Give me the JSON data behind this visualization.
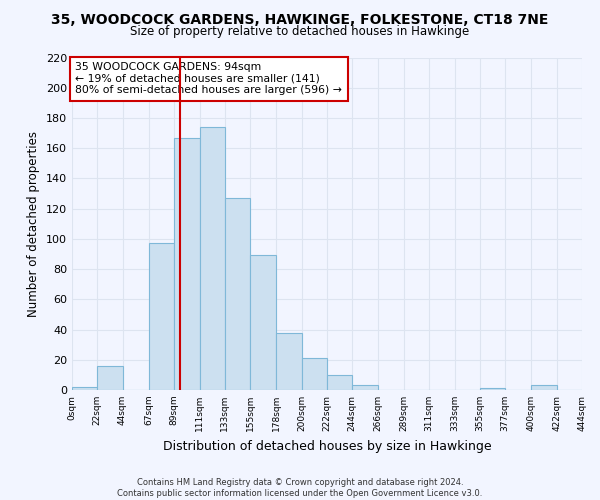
{
  "title": "35, WOODCOCK GARDENS, HAWKINGE, FOLKESTONE, CT18 7NE",
  "subtitle": "Size of property relative to detached houses in Hawkinge",
  "xlabel": "Distribution of detached houses by size in Hawkinge",
  "ylabel": "Number of detached properties",
  "bin_edges": [
    0,
    22,
    44,
    67,
    89,
    111,
    133,
    155,
    178,
    200,
    222,
    244,
    266,
    289,
    311,
    333,
    355,
    377,
    400,
    422,
    444
  ],
  "bar_heights": [
    2,
    16,
    0,
    97,
    167,
    174,
    127,
    89,
    38,
    21,
    10,
    3,
    0,
    0,
    0,
    0,
    1,
    0,
    3,
    0
  ],
  "bar_color": "#cce0f0",
  "bar_edge_color": "#7fb8d8",
  "property_line_x": 94,
  "property_line_color": "#cc0000",
  "ylim": [
    0,
    220
  ],
  "yticks": [
    0,
    20,
    40,
    60,
    80,
    100,
    120,
    140,
    160,
    180,
    200,
    220
  ],
  "tick_labels": [
    "0sqm",
    "22sqm",
    "44sqm",
    "67sqm",
    "89sqm",
    "111sqm",
    "133sqm",
    "155sqm",
    "178sqm",
    "200sqm",
    "222sqm",
    "244sqm",
    "266sqm",
    "289sqm",
    "311sqm",
    "333sqm",
    "355sqm",
    "377sqm",
    "400sqm",
    "422sqm",
    "444sqm"
  ],
  "annotation_text": "35 WOODCOCK GARDENS: 94sqm\n← 19% of detached houses are smaller (141)\n80% of semi-detached houses are larger (596) →",
  "annotation_box_facecolor": "white",
  "annotation_box_edgecolor": "#cc0000",
  "footnote1": "Contains HM Land Registry data © Crown copyright and database right 2024.",
  "footnote2": "Contains public sector information licensed under the Open Government Licence v3.0.",
  "background_color": "#f2f5ff",
  "grid_color": "#dde4f0"
}
